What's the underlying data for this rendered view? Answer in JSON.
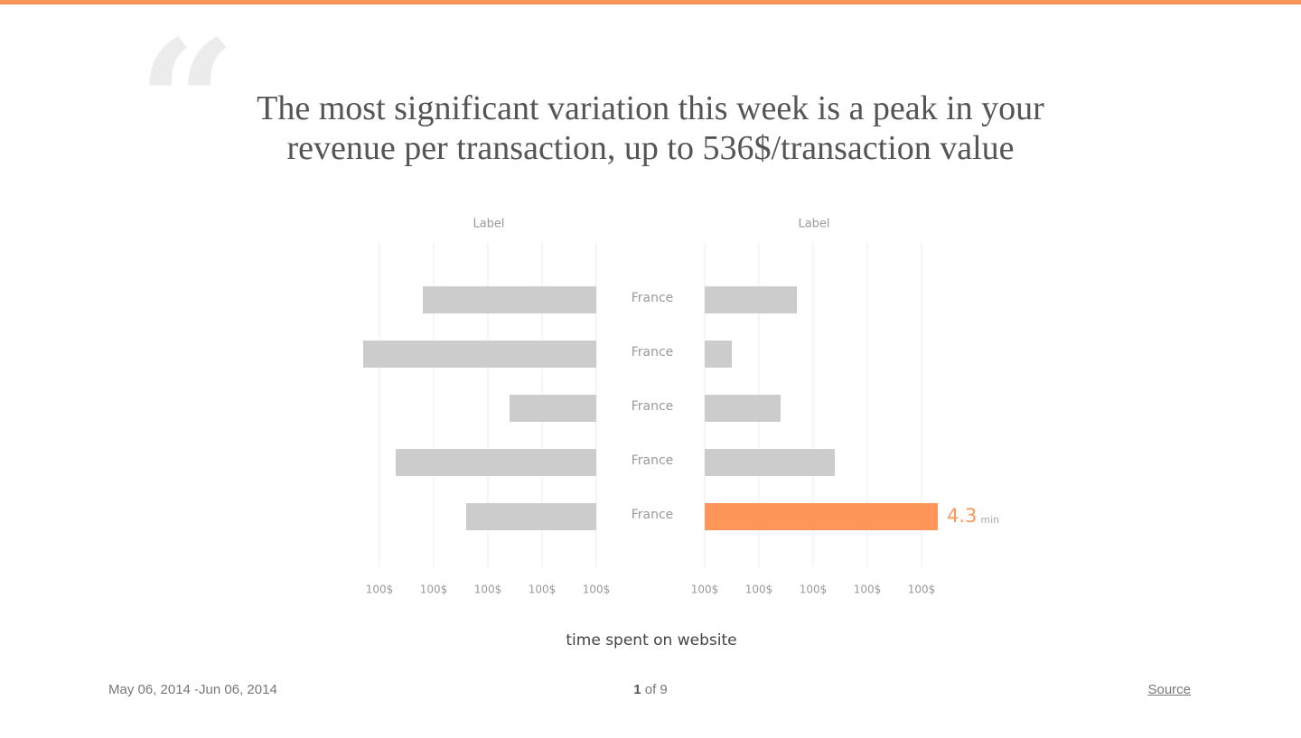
{
  "quote_mark": "“",
  "quote": "The most significant variation this week is a peak in your revenue per transaction, up to 536$/transaction value",
  "chart_data": {
    "type": "butterfly",
    "categories": [
      "France",
      "France",
      "France",
      "France",
      "France"
    ],
    "series": [
      {
        "name": "Label",
        "color": "#cccccc",
        "values": [
          3.2,
          4.3,
          1.6,
          3.7,
          2.4
        ]
      },
      {
        "name": "Label",
        "color": "#cccccc",
        "colors": [
          "#cccccc",
          "#cccccc",
          "#cccccc",
          "#cccccc",
          "#ff9659"
        ],
        "values": [
          1.7,
          0.5,
          1.4,
          2.4,
          4.3
        ],
        "unit": "min"
      }
    ],
    "xlim": [
      0,
      4
    ],
    "xticks": [
      {
        "value": 0,
        "label": "100$"
      },
      {
        "value": 1,
        "label": "100$"
      },
      {
        "value": 2,
        "label": "100$"
      },
      {
        "value": 3,
        "label": "100$"
      },
      {
        "value": 4,
        "label": "100$"
      }
    ],
    "grid": true,
    "x_label": "time spent on website"
  },
  "footer": {
    "date_range": "May 06, 2014 -Jun 06, 2014",
    "page": 1,
    "of_total": "of 9",
    "source": "Source"
  }
}
